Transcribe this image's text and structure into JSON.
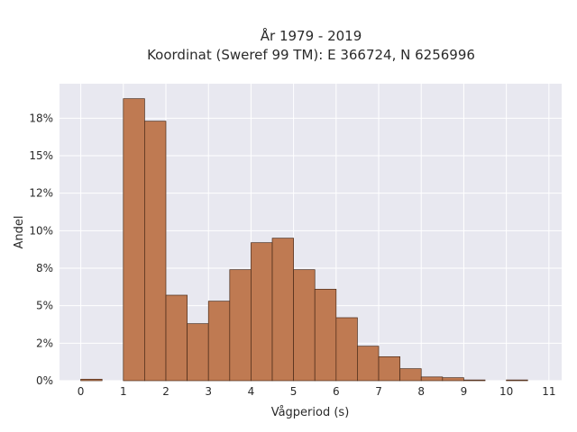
{
  "chart_data": {
    "type": "bar",
    "title": "År 1979 - 2019",
    "subtitle": "Koordinat (Sweref 99 TM): E 366724, N 6256996",
    "xlabel": "Vågperiod (s)",
    "ylabel": "Andel",
    "bin_width": 0.5,
    "bin_starts": [
      0,
      0.5,
      1,
      1.5,
      2,
      2.5,
      3,
      3.5,
      4,
      4.5,
      5,
      5.5,
      6,
      6.5,
      7,
      7.5,
      8,
      8.5,
      9,
      9.5,
      10,
      10.5
    ],
    "values": [
      0.1,
      0,
      18.8,
      17.3,
      5.7,
      3.8,
      5.3,
      7.4,
      9.2,
      9.5,
      7.4,
      6.1,
      4.2,
      2.3,
      1.6,
      0.8,
      0.25,
      0.2,
      0.05,
      0,
      0.05,
      0
    ],
    "xlim": [
      -0.5,
      11.3
    ],
    "ylim": [
      0,
      19.8
    ],
    "x_ticks": [
      0,
      1,
      2,
      3,
      4,
      5,
      6,
      7,
      8,
      9,
      10,
      11
    ],
    "y_ticks": [
      0,
      2.5,
      5,
      7.5,
      10,
      12.5,
      15,
      17.5
    ],
    "y_tick_labels": [
      "0%",
      "2%",
      "5%",
      "8%",
      "10%",
      "12%",
      "15%",
      "18%"
    ],
    "grid": true,
    "colors": {
      "bar_fill": "#bf7a52",
      "bar_stroke": "#4a2a18",
      "plot_bg": "#e8e8f0",
      "grid": "#ffffff"
    }
  }
}
